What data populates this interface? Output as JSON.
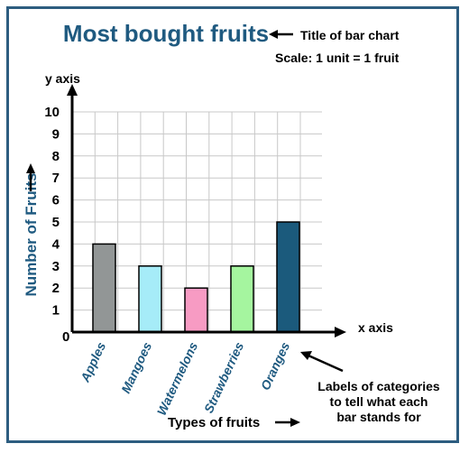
{
  "colors": {
    "frame": "#2d5d80",
    "title": "#1f5a80",
    "grid": "#c8c8c8",
    "axis": "#000000",
    "category_label": "#1f5a80",
    "ylabel": "#1f5a80"
  },
  "annotations": {
    "title_arrow": "Title of bar chart",
    "scale": "Scale: 1 unit = 1 fruit",
    "x_axis": "x axis",
    "y_axis": "y axis",
    "origin": "0",
    "categories_note": [
      "Labels of categories",
      "to tell what each",
      "bar stands for"
    ]
  },
  "chart_data": {
    "type": "bar",
    "title": "Most bought fruits",
    "xlabel": "Types of fruits",
    "ylabel": "Number of Fruits",
    "categories": [
      "Apples",
      "Mangoes",
      "Watermelons",
      "Strawberries",
      "Oranges"
    ],
    "values": [
      4,
      3,
      2,
      3,
      5
    ],
    "bar_colors": [
      "#929696",
      "#a6ecf8",
      "#f79bc3",
      "#a5f59f",
      "#1b5a7c"
    ],
    "ylim": [
      0,
      10
    ],
    "yticks": [
      "1",
      "2",
      "3",
      "4",
      "5",
      "6",
      "7",
      "8",
      "9",
      "10"
    ],
    "grid": true
  }
}
